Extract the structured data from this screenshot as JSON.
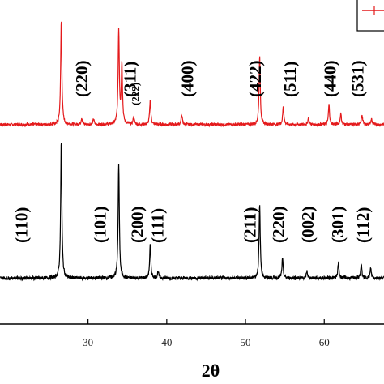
{
  "chart_data": {
    "type": "line",
    "xlabel": "2θ",
    "ylabel": "",
    "xlim": [
      18,
      68
    ],
    "x_ticks": [
      30,
      40,
      50,
      60
    ],
    "grid": false,
    "legend": {
      "placement": "top-right",
      "entries": [
        {
          "color": "#e41a1c"
        }
      ]
    },
    "series": [
      {
        "color": "#e41a1c",
        "peaks": [
          {
            "x": 26.6,
            "h": 0.95
          },
          {
            "x": 29.2,
            "h": 0.06
          },
          {
            "x": 30.7,
            "h": 0.05
          },
          {
            "x": 33.9,
            "h": 0.86
          },
          {
            "x": 34.3,
            "h": 0.55
          },
          {
            "x": 35.8,
            "h": 0.07
          },
          {
            "x": 37.9,
            "h": 0.22
          },
          {
            "x": 41.9,
            "h": 0.09
          },
          {
            "x": 51.8,
            "h": 0.62
          },
          {
            "x": 54.8,
            "h": 0.17
          },
          {
            "x": 58.0,
            "h": 0.06
          },
          {
            "x": 60.6,
            "h": 0.18
          },
          {
            "x": 62.1,
            "h": 0.1
          },
          {
            "x": 64.8,
            "h": 0.09
          },
          {
            "x": 66.0,
            "h": 0.05
          }
        ],
        "labels": [
          {
            "text": "(220)",
            "x": 29.2
          },
          {
            "text": "(311)",
            "x": 35.3
          },
          {
            "text": "(222)",
            "x": 36.0
          },
          {
            "text": "(400)",
            "x": 42.6
          },
          {
            "text": "(422)",
            "x": 51.2
          },
          {
            "text": "(511)",
            "x": 55.6
          },
          {
            "text": "(440)",
            "x": 60.7
          },
          {
            "text": "(531)",
            "x": 64.2
          }
        ]
      },
      {
        "color": "#000000",
        "peaks": [
          {
            "x": 26.6,
            "h": 1.0
          },
          {
            "x": 33.9,
            "h": 0.83
          },
          {
            "x": 37.9,
            "h": 0.24
          },
          {
            "x": 38.9,
            "h": 0.05
          },
          {
            "x": 51.8,
            "h": 0.53
          },
          {
            "x": 54.7,
            "h": 0.14
          },
          {
            "x": 57.8,
            "h": 0.05
          },
          {
            "x": 61.8,
            "h": 0.11
          },
          {
            "x": 64.7,
            "h": 0.1
          },
          {
            "x": 65.9,
            "h": 0.07
          }
        ],
        "labels": [
          {
            "text": "(110)",
            "x": 21.5
          },
          {
            "text": "(101)",
            "x": 31.5
          },
          {
            "text": "(200)",
            "x": 36.2
          },
          {
            "text": "(111)",
            "x": 38.8
          },
          {
            "text": "(211)",
            "x": 50.5
          },
          {
            "text": "(220)",
            "x": 54.2
          },
          {
            "text": "(002)",
            "x": 57.9
          },
          {
            "text": "(301)",
            "x": 61.7
          },
          {
            "text": "(112)",
            "x": 64.9
          }
        ]
      }
    ]
  }
}
